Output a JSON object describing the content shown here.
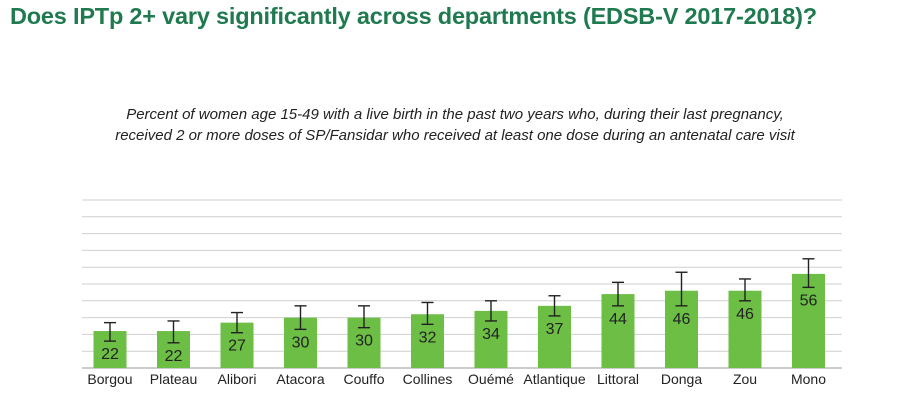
{
  "title": "Does IPTp 2+ vary significantly across departments (EDSB-V 2017-2018)?",
  "subtitle_lines": [
    "Percent of women age 15-49 with a live birth in the past two years who, during their last pregnancy,",
    "received 2 or more doses of SP/Fansidar who received at least one dose during an antenatal care visit"
  ],
  "colors": {
    "title": "#1f7a4f",
    "bar": "#6dbe45",
    "grid": "#cfcfcf",
    "error": "#222222"
  },
  "chart_data": {
    "type": "bar",
    "title": "Does IPTp 2+ vary significantly across departments (EDSB-V 2017-2018)?",
    "categories": [
      "Borgou",
      "Plateau",
      "Alibori",
      "Atacora",
      "Couffo",
      "Collines",
      "Ouémé",
      "Atlantique",
      "Littoral",
      "Donga",
      "Zou",
      "Mono"
    ],
    "values": [
      22,
      22,
      27,
      30,
      30,
      32,
      34,
      37,
      44,
      46,
      46,
      56
    ],
    "ci_low": [
      16,
      15,
      21,
      23,
      24,
      26,
      28,
      31,
      37,
      37,
      40,
      48
    ],
    "ci_high": [
      27,
      28,
      33,
      37,
      37,
      39,
      40,
      43,
      51,
      57,
      53,
      65
    ],
    "ylim": [
      0,
      100
    ],
    "grid": true,
    "xlabel": "",
    "ylabel": ""
  }
}
